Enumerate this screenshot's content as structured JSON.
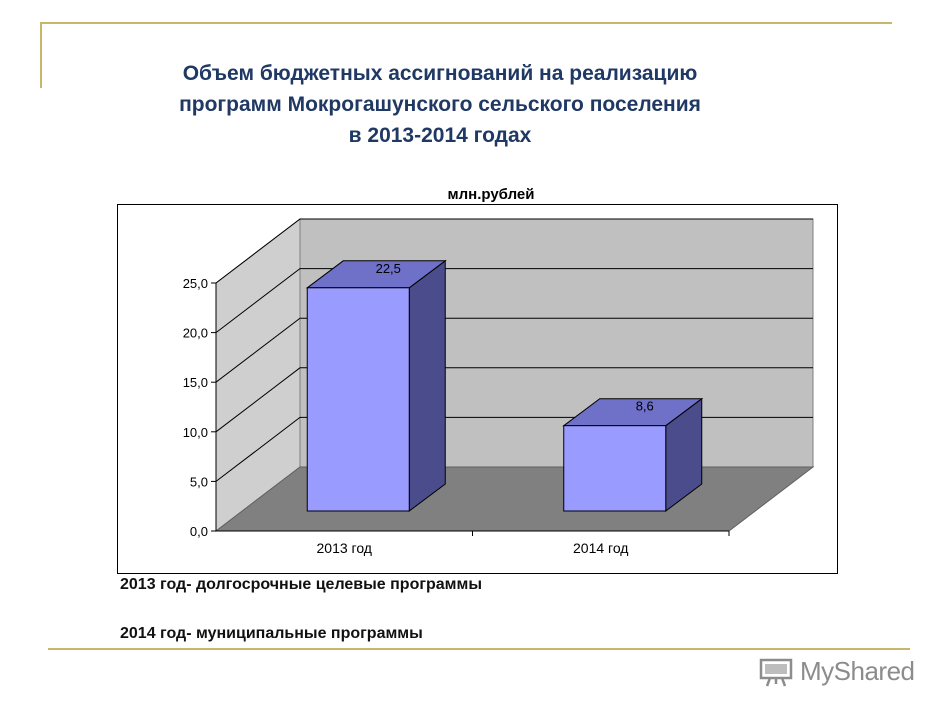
{
  "slide": {
    "title_lines": [
      "Объем бюджетных ассигнований на реализацию",
      "программ Мокрогашунского сельского поселения",
      "в 2013-2014 годах"
    ],
    "unit_label": "млн.рублей",
    "notes": [
      "2013 год-  долгосрочные целевые программы",
      "2014 год-  муниципальные программы"
    ],
    "logo_text": "MyShared",
    "logo_icon": "presentation-icon",
    "accent_color": "#c8b66b",
    "title_color": "#1f3864"
  },
  "chart_data": {
    "type": "bar",
    "style": "3d",
    "categories": [
      "2013 год",
      "2014 год"
    ],
    "values": [
      22.5,
      8.6
    ],
    "value_labels": [
      "22,5",
      "8,6"
    ],
    "yticks": [
      "0,0",
      "5,0",
      "10,0",
      "15,0",
      "20,0",
      "25,0"
    ],
    "ylim": [
      0,
      25
    ],
    "title": "",
    "xlabel": "",
    "ylabel": "",
    "grid": true,
    "colors": {
      "bar_front": "#9a9bff",
      "bar_top": "#6f70c8",
      "bar_side": "#4b4c8c",
      "back_wall": "#c0c0c0",
      "side_wall": "#cfcfcf",
      "floor": "#808080"
    }
  }
}
